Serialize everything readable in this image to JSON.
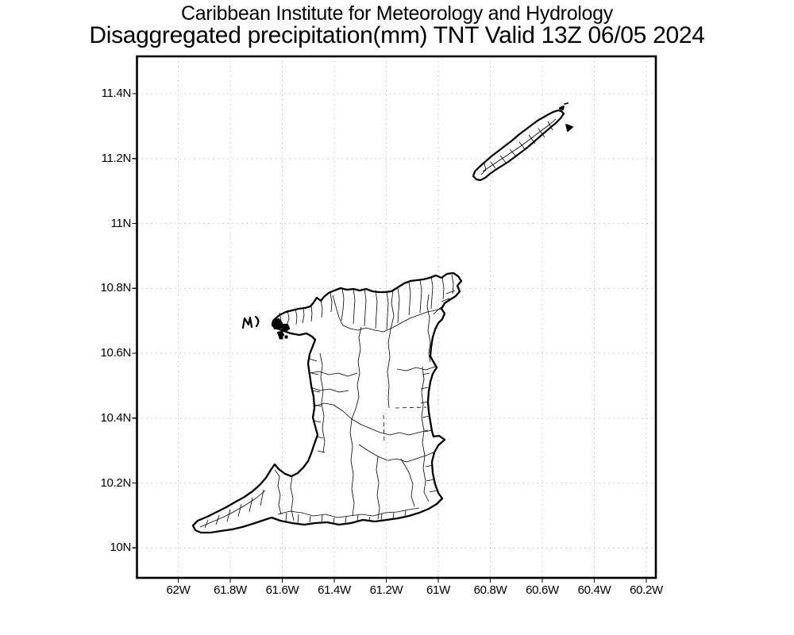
{
  "header": {
    "line1": "Caribbean Institute for Meteorology and Hydrology",
    "line2": "Disaggregated precipitation(mm) TNT Valid 13Z 06/05 2024"
  },
  "map": {
    "region": "Trinidad and Tobago",
    "islands": [
      "Trinidad",
      "Tobago"
    ],
    "axes": {
      "lat_ticks": [
        "11.4N",
        "11.2N",
        "11N",
        "10.8N",
        "10.6N",
        "10.4N",
        "10.2N",
        "10N"
      ],
      "lon_ticks": [
        "62W",
        "61.8W",
        "61.6W",
        "61.4W",
        "61.2W",
        "61W",
        "60.8W",
        "60.6W",
        "60.4W",
        "60.2W"
      ]
    },
    "colors": {
      "coastline": "#000000",
      "boundaries": "#000000",
      "grid": "#c2c2c2",
      "frame": "#000000",
      "background": "#ffffff"
    },
    "precipitation_shading_visible": "none"
  },
  "chart_data": {
    "type": "table",
    "title": "Caribbean Institute for Meteorology and Hydrology",
    "subtitle": "Disaggregated precipitation(mm) TNT Valid 13Z 06/05 2024",
    "x_tick_labels": [
      "62W",
      "61.8W",
      "61.6W",
      "61.4W",
      "61.2W",
      "61W",
      "60.8W",
      "60.6W",
      "60.4W",
      "60.2W"
    ],
    "y_tick_labels": [
      "11.4N",
      "11.2N",
      "11N",
      "10.8N",
      "10.6N",
      "10.4N",
      "10.2N",
      "10N"
    ],
    "grid": "dotted",
    "legend": "none"
  }
}
